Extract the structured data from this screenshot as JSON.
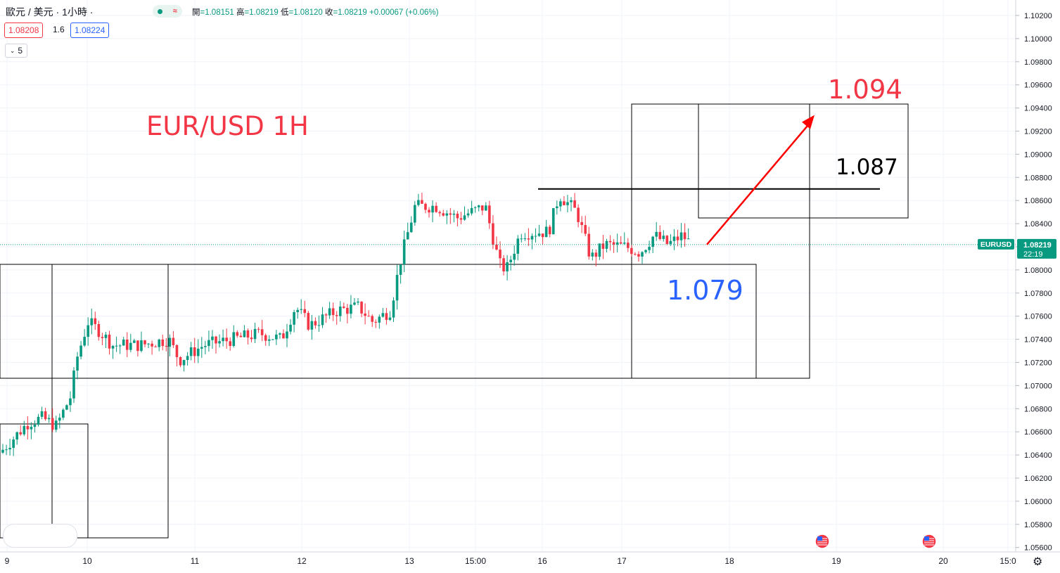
{
  "header": {
    "symbol": "歐元 / 美元 · 1小時 ·",
    "ohlc_open_label": "開",
    "ohlc_open": "=1.08151",
    "ohlc_high_label": "高",
    "ohlc_high": "=1.08219",
    "ohlc_low_label": "低",
    "ohlc_low": "=1.08120",
    "ohlc_close_label": "收",
    "ohlc_close": "=1.08219",
    "ohlc_change": "+0.00067 (+0.06%)",
    "bid": "1.08208",
    "spread": "1.6",
    "ask": "1.08224",
    "collapse_count": "5",
    "status_icon": "market-open-dot",
    "wave_icon": "≈"
  },
  "chart_data": {
    "type": "candlestick",
    "title": "EUR/USD 1H",
    "ylim": [
      1.0555,
      1.103
    ],
    "y_ticks": [
      "1.10200",
      "1.10000",
      "1.09800",
      "1.09600",
      "1.09400",
      "1.09200",
      "1.09000",
      "1.08800",
      "1.08600",
      "1.08400",
      "1.08200",
      "1.08000",
      "1.07800",
      "1.07600",
      "1.07400",
      "1.07200",
      "1.07000",
      "1.06800",
      "1.06600",
      "1.06400",
      "1.06200",
      "1.06000",
      "1.05800",
      "1.05600"
    ],
    "x_ticks": [
      "9",
      "10",
      "11",
      "12",
      "13",
      "15:00",
      "16",
      "17",
      "18",
      "19",
      "20",
      "15:0"
    ],
    "series": [
      {
        "segment": "Nov 9",
        "approx_range": [
          1.064,
          1.067
        ],
        "trend": "up"
      },
      {
        "segment": "Nov 10",
        "approx_range": [
          1.066,
          1.076
        ],
        "trend": "sharp-up"
      },
      {
        "segment": "Nov 10-11",
        "approx_range": [
          1.0715,
          1.075
        ],
        "trend": "sideways"
      },
      {
        "segment": "Nov 11-12",
        "approx_range": [
          1.0725,
          1.0775
        ],
        "trend": "up"
      },
      {
        "segment": "Nov 12-13",
        "approx_range": [
          1.073,
          1.0855
        ],
        "trend": "sharp-up"
      },
      {
        "segment": "Nov 13-16",
        "approx_range": [
          1.078,
          1.0868
        ],
        "trend": "range"
      },
      {
        "segment": "Nov 16-17",
        "approx_range": [
          1.08,
          1.0872
        ],
        "trend": "pullback"
      },
      {
        "segment": "Nov 17",
        "approx_range": [
          1.0808,
          1.0835
        ],
        "trend": "consolidation"
      }
    ],
    "current_price": "1.08219",
    "current_symbol": "EURUSD",
    "countdown": "22:19",
    "annotations": {
      "support": "1.079",
      "target_1": "1.087",
      "target_2": "1.094",
      "support_value": 1.079,
      "target_1_value": 1.087,
      "target_2_value": 1.094
    },
    "colors": {
      "up": "#089981",
      "down": "#f23645",
      "title": "#f23645",
      "support": "#2962ff",
      "target_2": "#f23645",
      "target_1": "#000000",
      "arrow": "#ff0000"
    },
    "event_icons": [
      "us-flag-icon",
      "us-flag-icon"
    ]
  }
}
